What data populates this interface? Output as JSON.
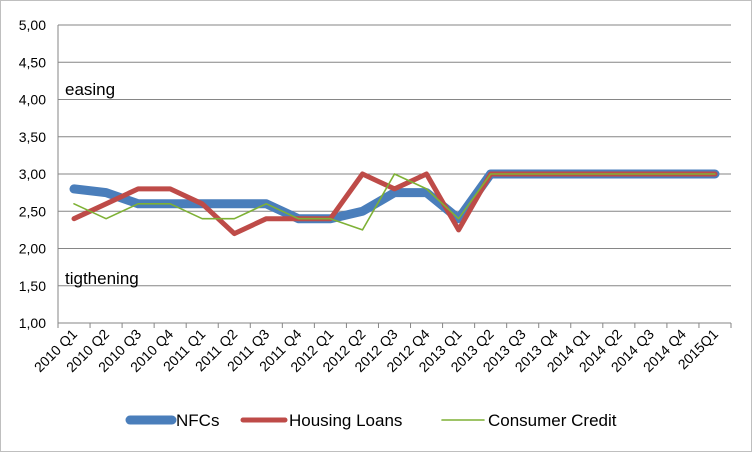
{
  "chart_data": {
    "type": "line",
    "title": "",
    "xlabel": "",
    "ylabel": "",
    "ylim": [
      1.0,
      5.0
    ],
    "yticks": [
      "1,00",
      "1,50",
      "2,00",
      "2,50",
      "3,00",
      "3,50",
      "4,00",
      "4,50",
      "5,00"
    ],
    "grid": "horizontal",
    "legend_position": "bottom",
    "categories": [
      "2010 Q1",
      "2010 Q2",
      "2010 Q3",
      "2010 Q4",
      "2011 Q1",
      "2011 Q2",
      "2011 Q3",
      "2011 Q4",
      "2012 Q1",
      "2012 Q2",
      "2012 Q3",
      "2012 Q4",
      "2013 Q1",
      "2013 Q2",
      "2013 Q3",
      "2013 Q4",
      "2014 Q1",
      "2014 Q2",
      "2014 Q3",
      "2014 Q4",
      "2015Q1"
    ],
    "series": [
      {
        "name": "NFCs",
        "color": "#4a7ebb",
        "values": [
          2.8,
          2.75,
          2.6,
          2.6,
          2.6,
          2.6,
          2.6,
          2.4,
          2.4,
          2.5,
          2.75,
          2.75,
          2.4,
          3.0,
          3.0,
          3.0,
          3.0,
          3.0,
          3.0,
          3.0,
          3.0
        ]
      },
      {
        "name": "Housing Loans",
        "color": "#be4b48",
        "values": [
          2.4,
          2.6,
          2.8,
          2.8,
          2.6,
          2.2,
          2.4,
          2.4,
          2.4,
          3.0,
          2.8,
          3.0,
          2.25,
          3.0,
          3.0,
          3.0,
          3.0,
          3.0,
          3.0,
          3.0,
          3.0
        ]
      },
      {
        "name": "Consumer Credit",
        "color": "#7eb135",
        "values": [
          2.6,
          2.4,
          2.6,
          2.6,
          2.4,
          2.4,
          2.6,
          2.4,
          2.4,
          2.25,
          3.0,
          2.8,
          2.4,
          3.0,
          3.0,
          3.0,
          3.0,
          3.0,
          3.0,
          3.0,
          3.0
        ]
      }
    ],
    "annotations": [
      "easing",
      "tigthening"
    ]
  }
}
